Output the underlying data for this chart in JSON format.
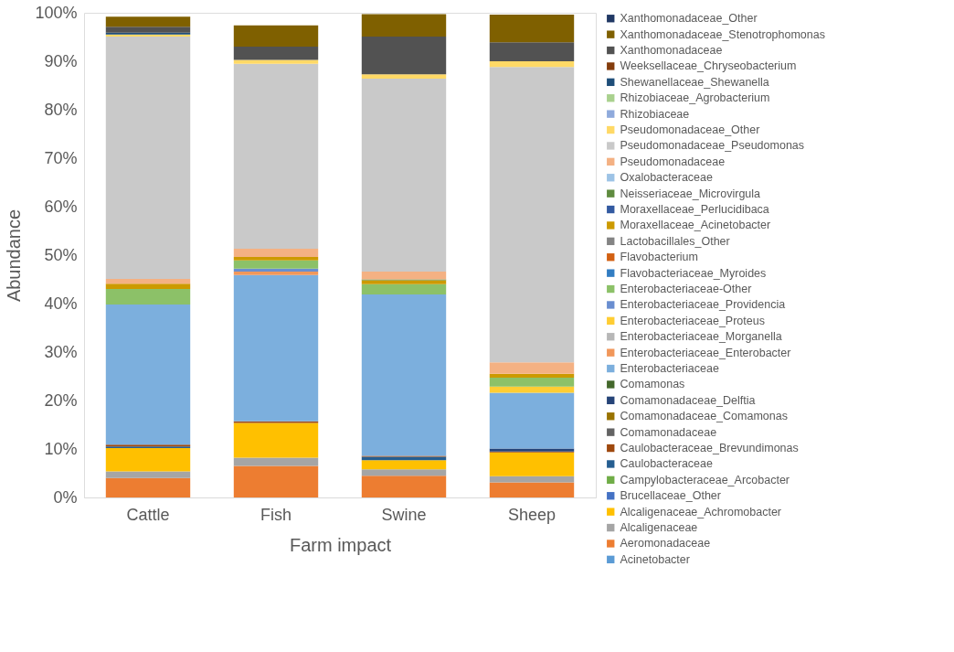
{
  "chart_data": {
    "type": "bar",
    "stacked": true,
    "xlabel": "Farm impact",
    "ylabel": "Abundance",
    "categories": [
      "Cattle",
      "Fish",
      "Swine",
      "Sheep"
    ],
    "ylim": [
      0,
      100
    ],
    "yticks": [
      {
        "value": 0,
        "label": "0%"
      },
      {
        "value": 10,
        "label": "10%"
      },
      {
        "value": 20,
        "label": "20%"
      },
      {
        "value": 30,
        "label": "30%"
      },
      {
        "value": 40,
        "label": "40%"
      },
      {
        "value": 50,
        "label": "50%"
      },
      {
        "value": 60,
        "label": "60%"
      },
      {
        "value": 70,
        "label": "70%"
      },
      {
        "value": 80,
        "label": "80%"
      },
      {
        "value": 90,
        "label": "90%"
      },
      {
        "value": 100,
        "label": "100%"
      }
    ],
    "grid": false,
    "legend": "right",
    "series": [
      {
        "name": "Acinetobacter",
        "color": "#5b9bd5",
        "values": [
          null,
          null,
          null,
          null
        ]
      },
      {
        "name": "Aeromonadaceae",
        "color": "#ed7d31",
        "values": [
          4.0,
          6.5,
          4.5,
          3.1
        ]
      },
      {
        "name": "Alcaligenaceae",
        "color": "#a5a5a5",
        "values": [
          1.4,
          1.7,
          1.3,
          1.3
        ]
      },
      {
        "name": "Alcaligenaceae_Achromobacter",
        "color": "#ffc000",
        "values": [
          4.8,
          7.2,
          1.9,
          4.9
        ]
      },
      {
        "name": "Brucellaceae_Other",
        "color": "#4472c4",
        "values": [
          null,
          null,
          null,
          null
        ]
      },
      {
        "name": "Campylobacteraceae_Arcobacter",
        "color": "#70ad47",
        "values": [
          null,
          null,
          null,
          null
        ]
      },
      {
        "name": "Caulobacteraceae",
        "color": "#255e91",
        "values": [
          0.3,
          null,
          0.7,
          null
        ]
      },
      {
        "name": "Caulobacteraceae_Brevundimonas",
        "color": "#9e480e",
        "values": [
          0.4,
          0.3,
          0.2,
          0.2
        ]
      },
      {
        "name": "Comamonadaceae",
        "color": "#636363",
        "values": [
          null,
          null,
          null,
          null
        ]
      },
      {
        "name": "Comamonadaceae_Comamonas",
        "color": "#997300",
        "values": [
          null,
          null,
          null,
          null
        ]
      },
      {
        "name": "Comamonadaceae_Delftia",
        "color": "#264478",
        "values": [
          null,
          null,
          null,
          0.6
        ]
      },
      {
        "name": "Comamonas",
        "color": "#43682b",
        "values": [
          null,
          null,
          null,
          null
        ]
      },
      {
        "name": "Enterobacteriaceae",
        "color": "#7cafdd",
        "values": [
          28.9,
          30.2,
          33.3,
          11.5
        ]
      },
      {
        "name": "Enterobacteriaceae_Enterobacter",
        "color": "#f1975a",
        "values": [
          null,
          0.7,
          null,
          null
        ]
      },
      {
        "name": "Enterobacteriaceae_Morganella",
        "color": "#b7b7b7",
        "values": [
          null,
          null,
          null,
          null
        ]
      },
      {
        "name": "Enterobacteriaceae_Proteus",
        "color": "#ffcd33",
        "values": [
          null,
          null,
          null,
          1.3
        ]
      },
      {
        "name": "Enterobacteriaceae_Providencia",
        "color": "#698ed0",
        "values": [
          null,
          0.6,
          null,
          null
        ]
      },
      {
        "name": "Enterobacteriaceae-Other",
        "color": "#8cc168",
        "values": [
          3.2,
          1.7,
          2.1,
          1.8
        ]
      },
      {
        "name": "Flavobacteriaceae_Myroides",
        "color": "#327dc2",
        "values": [
          null,
          null,
          null,
          null
        ]
      },
      {
        "name": "Flavobacterium",
        "color": "#d26012",
        "values": [
          null,
          null,
          null,
          null
        ]
      },
      {
        "name": "Lactobacillales_Other",
        "color": "#848484",
        "values": [
          null,
          null,
          null,
          null
        ]
      },
      {
        "name": "Moraxellaceae_Acinetobacter",
        "color": "#cc9a00",
        "values": [
          1.1,
          0.7,
          0.8,
          0.8
        ]
      },
      {
        "name": "Moraxellaceae_Perlucidibaca",
        "color": "#335aa1",
        "values": [
          null,
          null,
          null,
          null
        ]
      },
      {
        "name": "Neisseriaceae_Microvirgula",
        "color": "#5f8b3f",
        "values": [
          null,
          null,
          0.2,
          null
        ]
      },
      {
        "name": "Oxalobacteraceae",
        "color": "#9dc3e6",
        "values": [
          null,
          null,
          null,
          null
        ]
      },
      {
        "name": "Pseudomonadaceae",
        "color": "#f4b183",
        "values": [
          1.0,
          1.7,
          1.6,
          2.4
        ]
      },
      {
        "name": "Pseudomonadaceae_Pseudomonas",
        "color": "#c9c9c9",
        "values": [
          50.0,
          38.2,
          39.8,
          60.9
        ]
      },
      {
        "name": "Pseudomonadaceae_Other",
        "color": "#ffd966",
        "values": [
          0.4,
          0.8,
          0.9,
          1.2
        ]
      },
      {
        "name": "Rhizobiaceae",
        "color": "#8faadc",
        "values": [
          null,
          null,
          null,
          null
        ]
      },
      {
        "name": "Rhizobiaceae_Agrobacterium",
        "color": "#a9d18e",
        "values": [
          null,
          null,
          null,
          null
        ]
      },
      {
        "name": "Shewanellaceae_Shewanella",
        "color": "#1f4e79",
        "values": [
          0.4,
          null,
          null,
          null
        ]
      },
      {
        "name": "Weeksellaceae_Chryseobacterium",
        "color": "#843c0c",
        "values": [
          null,
          null,
          null,
          null
        ]
      },
      {
        "name": "Xanthomonadaceae",
        "color": "#525252",
        "values": [
          1.2,
          2.7,
          7.8,
          3.9
        ]
      },
      {
        "name": "Xanthomonadaceae_Stenotrophomonas",
        "color": "#7f6000",
        "values": [
          2.1,
          4.4,
          4.6,
          5.7
        ]
      },
      {
        "name": "Xanthomonadaceae_Other",
        "color": "#203864",
        "values": [
          null,
          null,
          null,
          null
        ]
      }
    ]
  }
}
